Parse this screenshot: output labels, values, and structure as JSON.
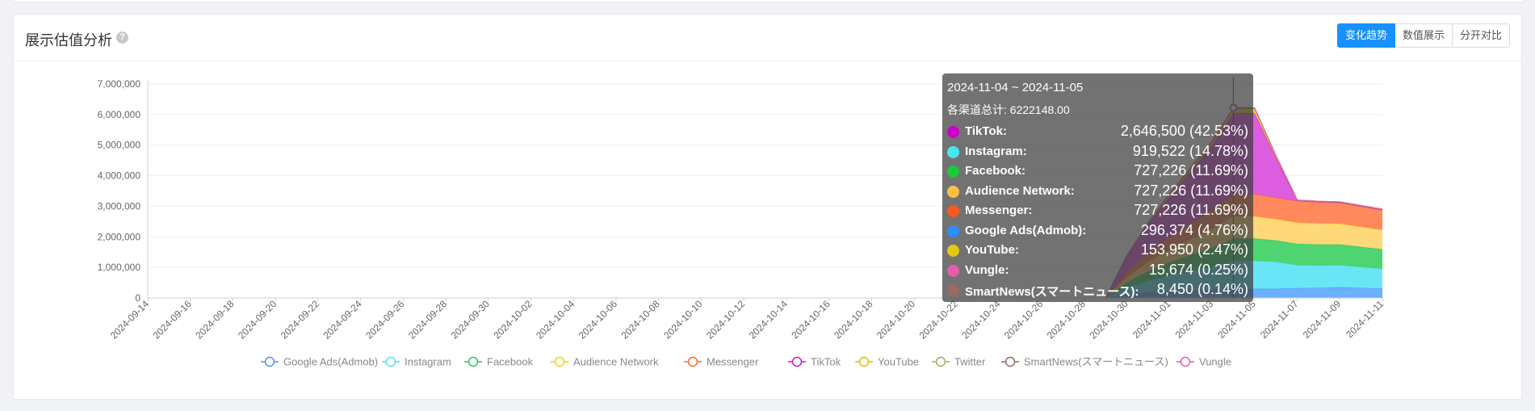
{
  "card": {
    "title": "展示估值分析",
    "help_icon": "?",
    "view_buttons": [
      {
        "label": "变化趋势",
        "active": true
      },
      {
        "label": "数值展示",
        "active": false
      },
      {
        "label": "分开对比",
        "active": false
      }
    ]
  },
  "tooltip": {
    "date_range": "2024-11-04 ~ 2024-11-05",
    "total_label": "各渠道总计: 6222148.00",
    "rows": [
      {
        "name": "TikTok:",
        "value": "2,646,500 (42.53%)",
        "color": "#cc00cc"
      },
      {
        "name": "Instagram:",
        "value": "919,522 (14.78%)",
        "color": "#48e6f2"
      },
      {
        "name": "Facebook:",
        "value": "727,226 (11.69%)",
        "color": "#1ec93c"
      },
      {
        "name": "Audience Network:",
        "value": "727,226 (11.69%)",
        "color": "#fcc042"
      },
      {
        "name": "Messenger:",
        "value": "727,226 (11.69%)",
        "color": "#fa5a22"
      },
      {
        "name": "Google Ads(Admob):",
        "value": "296,374 (4.76%)",
        "color": "#2f8eff"
      },
      {
        "name": "YouTube:",
        "value": "153,950 (2.47%)",
        "color": "#e6c810"
      },
      {
        "name": "Vungle:",
        "value": "15,674 (0.25%)",
        "color": "#e35eaa"
      },
      {
        "name": "SmartNews(スマートニュース):",
        "value": "8,450 (0.14%)",
        "color": "#9a6a66"
      }
    ]
  },
  "chart_data": {
    "type": "area",
    "stacked": true,
    "x": [
      "2024-09-14",
      "2024-09-15",
      "2024-09-16",
      "2024-09-17",
      "2024-09-18",
      "2024-09-19",
      "2024-09-20",
      "2024-09-21",
      "2024-09-22",
      "2024-09-23",
      "2024-09-24",
      "2024-09-25",
      "2024-09-26",
      "2024-09-27",
      "2024-09-28",
      "2024-09-29",
      "2024-09-30",
      "2024-10-01",
      "2024-10-02",
      "2024-10-03",
      "2024-10-04",
      "2024-10-05",
      "2024-10-06",
      "2024-10-07",
      "2024-10-08",
      "2024-10-09",
      "2024-10-10",
      "2024-10-11",
      "2024-10-12",
      "2024-10-13",
      "2024-10-14",
      "2024-10-15",
      "2024-10-16",
      "2024-10-17",
      "2024-10-18",
      "2024-10-19",
      "2024-10-20",
      "2024-10-21",
      "2024-10-22",
      "2024-10-23",
      "2024-10-24",
      "2024-10-25",
      "2024-10-26",
      "2024-10-27",
      "2024-10-28",
      "2024-10-29",
      "2024-10-30",
      "2024-10-31",
      "2024-11-01",
      "2024-11-02",
      "2024-11-03",
      "2024-11-04",
      "2024-11-05",
      "2024-11-06",
      "2024-11-07",
      "2024-11-08",
      "2024-11-09",
      "2024-11-10",
      "2024-11-11"
    ],
    "x_tick_labels": [
      "2024-09-14",
      "2024-09-16",
      "2024-09-18",
      "2024-09-20",
      "2024-09-22",
      "2024-09-24",
      "2024-09-26",
      "2024-09-28",
      "2024-09-30",
      "2024-10-02",
      "2024-10-04",
      "2024-10-06",
      "2024-10-08",
      "2024-10-10",
      "2024-10-12",
      "2024-10-14",
      "2024-10-16",
      "2024-10-18",
      "2024-10-20",
      "2024-10-22",
      "2024-10-24",
      "2024-10-26",
      "2024-10-28",
      "2024-10-30",
      "2024-11-01",
      "2024-11-03",
      "2024-11-05",
      "2024-11-07",
      "2024-11-09",
      "2024-11-11"
    ],
    "y_tick_labels": [
      "0",
      "1,000,000",
      "2,000,000",
      "3,000,000",
      "4,000,000",
      "5,000,000",
      "6,000,000",
      "7,000,000"
    ],
    "ylim": [
      0,
      7000000
    ],
    "grid": true,
    "legend_position": "bottom",
    "series": [
      {
        "name": "Google Ads(Admob)",
        "color": "#5b8ff9",
        "fill": "#5ea8ff",
        "values": [
          0,
          0,
          0,
          0,
          0,
          0,
          0,
          0,
          0,
          0,
          0,
          0,
          0,
          0,
          0,
          0,
          0,
          0,
          0,
          0,
          0,
          0,
          0,
          0,
          0,
          0,
          0,
          0,
          0,
          0,
          0,
          0,
          0,
          0,
          0,
          0,
          0,
          0,
          0,
          0,
          0,
          0,
          0,
          0,
          0,
          0,
          120000,
          180000,
          220000,
          240000,
          260000,
          296374,
          296374,
          300000,
          320000,
          330000,
          350000,
          330000,
          300000
        ]
      },
      {
        "name": "Instagram",
        "color": "#48e6f2",
        "fill": "#5de3f5",
        "values": [
          0,
          0,
          0,
          0,
          0,
          0,
          0,
          0,
          0,
          0,
          0,
          0,
          0,
          0,
          0,
          0,
          0,
          0,
          0,
          0,
          0,
          0,
          0,
          0,
          0,
          0,
          0,
          0,
          0,
          0,
          0,
          0,
          0,
          0,
          0,
          0,
          0,
          0,
          0,
          0,
          0,
          0,
          0,
          0,
          0,
          0,
          220000,
          380000,
          520000,
          640000,
          760000,
          919522,
          919522,
          880000,
          750000,
          730000,
          720000,
          680000,
          650000
        ]
      },
      {
        "name": "Facebook",
        "color": "#2fc25b",
        "fill": "#3fd064",
        "values": [
          0,
          0,
          0,
          0,
          0,
          0,
          0,
          0,
          0,
          0,
          0,
          0,
          0,
          0,
          0,
          0,
          0,
          0,
          0,
          0,
          0,
          0,
          0,
          0,
          0,
          0,
          0,
          0,
          0,
          0,
          0,
          0,
          0,
          0,
          0,
          0,
          0,
          0,
          0,
          0,
          0,
          0,
          0,
          0,
          0,
          0,
          170000,
          310000,
          420000,
          520000,
          620000,
          727226,
          727226,
          700000,
          700000,
          690000,
          680000,
          660000,
          640000
        ]
      },
      {
        "name": "Audience Network",
        "color": "#facc14",
        "fill": "#ffd56e",
        "values": [
          0,
          0,
          0,
          0,
          0,
          0,
          0,
          0,
          0,
          0,
          0,
          0,
          0,
          0,
          0,
          0,
          0,
          0,
          0,
          0,
          0,
          0,
          0,
          0,
          0,
          0,
          0,
          0,
          0,
          0,
          0,
          0,
          0,
          0,
          0,
          0,
          0,
          0,
          0,
          0,
          0,
          0,
          0,
          0,
          0,
          0,
          170000,
          310000,
          420000,
          520000,
          620000,
          727226,
          727226,
          700000,
          700000,
          690000,
          680000,
          660000,
          640000
        ]
      },
      {
        "name": "Messenger",
        "color": "#fa6a2a",
        "fill": "#ff7f4f",
        "values": [
          0,
          0,
          0,
          0,
          0,
          0,
          0,
          0,
          0,
          0,
          0,
          0,
          0,
          0,
          0,
          0,
          0,
          0,
          0,
          0,
          0,
          0,
          0,
          0,
          0,
          0,
          0,
          0,
          0,
          0,
          0,
          0,
          0,
          0,
          0,
          0,
          0,
          0,
          0,
          0,
          0,
          0,
          0,
          0,
          0,
          0,
          170000,
          310000,
          420000,
          520000,
          620000,
          727226,
          727226,
          700000,
          700000,
          690000,
          680000,
          660000,
          640000
        ]
      },
      {
        "name": "TikTok",
        "color": "#c71ccb",
        "fill": "#d94fdb",
        "values": [
          0,
          0,
          0,
          0,
          0,
          0,
          0,
          0,
          0,
          0,
          0,
          0,
          0,
          0,
          0,
          0,
          0,
          0,
          0,
          0,
          0,
          0,
          0,
          0,
          0,
          0,
          0,
          0,
          0,
          0,
          0,
          0,
          0,
          0,
          0,
          0,
          0,
          0,
          0,
          0,
          0,
          0,
          0,
          0,
          0,
          0,
          500000,
          900000,
          1300000,
          1700000,
          2100000,
          2646500,
          2646500,
          1300000,
          20000,
          20000,
          20000,
          20000,
          20000
        ]
      },
      {
        "name": "YouTube",
        "color": "#e0c000",
        "fill": "#e9cc2a",
        "values": [
          0,
          0,
          0,
          0,
          0,
          0,
          0,
          0,
          0,
          0,
          0,
          0,
          0,
          0,
          0,
          0,
          0,
          0,
          0,
          0,
          0,
          0,
          0,
          0,
          0,
          0,
          0,
          0,
          0,
          0,
          0,
          0,
          0,
          0,
          0,
          0,
          0,
          0,
          0,
          0,
          0,
          0,
          0,
          0,
          0,
          0,
          40000,
          70000,
          95000,
          115000,
          135000,
          153950,
          153950,
          70000,
          10000,
          10000,
          10000,
          10000,
          10000
        ]
      },
      {
        "name": "Twitter",
        "color": "#9fb05c",
        "fill": "#a7b765",
        "values": [
          0,
          0,
          0,
          0,
          0,
          0,
          0,
          0,
          0,
          0,
          0,
          0,
          0,
          0,
          0,
          0,
          0,
          0,
          0,
          0,
          0,
          0,
          0,
          0,
          0,
          0,
          0,
          0,
          0,
          0,
          0,
          0,
          0,
          0,
          0,
          0,
          0,
          0,
          0,
          0,
          0,
          0,
          0,
          0,
          0,
          0,
          0,
          0,
          0,
          0,
          0,
          0,
          0,
          0,
          0,
          0,
          0,
          0,
          0
        ]
      },
      {
        "name": "SmartNews(スマートニュース)",
        "color": "#9a6a66",
        "fill": "#9a6a66",
        "values": [
          0,
          0,
          0,
          0,
          0,
          0,
          0,
          0,
          0,
          0,
          0,
          0,
          0,
          0,
          0,
          0,
          0,
          0,
          0,
          0,
          0,
          0,
          0,
          0,
          0,
          0,
          0,
          0,
          0,
          0,
          0,
          0,
          0,
          0,
          0,
          0,
          0,
          0,
          0,
          0,
          0,
          0,
          0,
          0,
          0,
          0,
          2000,
          4000,
          5000,
          6000,
          7000,
          8450,
          8450,
          5000,
          3000,
          3000,
          3000,
          3000,
          3000
        ]
      },
      {
        "name": "Vungle",
        "color": "#e35eaa",
        "fill": "#e872b5",
        "values": [
          0,
          0,
          0,
          0,
          0,
          0,
          0,
          0,
          0,
          0,
          0,
          0,
          0,
          0,
          0,
          0,
          0,
          0,
          0,
          0,
          0,
          0,
          0,
          0,
          0,
          0,
          0,
          0,
          0,
          0,
          0,
          0,
          0,
          0,
          0,
          0,
          0,
          0,
          0,
          0,
          0,
          0,
          0,
          0,
          0,
          0,
          4000,
          7000,
          9000,
          11000,
          13000,
          15674,
          15674,
          8000,
          4000,
          4000,
          4000,
          4000,
          4000
        ]
      }
    ],
    "legend_order": [
      "Google Ads(Admob)",
      "Instagram",
      "Facebook",
      "Audience Network",
      "Messenger",
      "TikTok",
      "YouTube",
      "Twitter",
      "SmartNews(スマートニュース)",
      "Vungle"
    ],
    "hover_index": 51
  }
}
